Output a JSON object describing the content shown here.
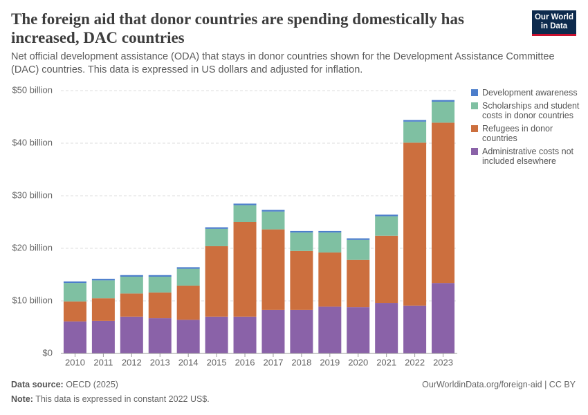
{
  "chart_data": {
    "type": "stacked_bar",
    "title": "The foreign aid that donor countries are spending domestically has increased, DAC countries",
    "subtitle": "Net official development assistance (ODA) that stays in donor countries shown for the Development Assistance Committee (DAC) countries. This data is expressed in US dollars and adjusted for inflation.",
    "categories": [
      "2010",
      "2011",
      "2012",
      "2013",
      "2014",
      "2015",
      "2016",
      "2017",
      "2018",
      "2019",
      "2020",
      "2021",
      "2022",
      "2023"
    ],
    "series": [
      {
        "name": "Administrative costs not included elsewhere",
        "color": "#8a62a8",
        "values": [
          6.1,
          6.2,
          7.0,
          6.7,
          6.4,
          7.0,
          7.0,
          8.3,
          8.3,
          8.9,
          8.8,
          9.6,
          9.1,
          13.4
        ]
      },
      {
        "name": "Refugees in donor countries",
        "color": "#cc6f3e",
        "values": [
          3.8,
          4.3,
          4.4,
          4.9,
          6.5,
          13.4,
          18.0,
          15.3,
          11.2,
          10.3,
          9.0,
          12.8,
          31.0,
          30.5
        ]
      },
      {
        "name": "Scholarships and student costs in donor countries",
        "color": "#7fc0a2",
        "values": [
          3.5,
          3.4,
          3.2,
          3.0,
          3.2,
          3.3,
          3.2,
          3.4,
          3.5,
          3.8,
          3.8,
          3.7,
          4.0,
          4.0
        ]
      },
      {
        "name": "Development awareness",
        "color": "#4c7ecb",
        "values": [
          0.3,
          0.3,
          0.3,
          0.3,
          0.3,
          0.3,
          0.3,
          0.3,
          0.3,
          0.3,
          0.3,
          0.3,
          0.3,
          0.3
        ]
      }
    ],
    "ylim": [
      0,
      50
    ],
    "yticks": [
      {
        "value": 0,
        "label": "$0"
      },
      {
        "value": 10,
        "label": "$10 billion"
      },
      {
        "value": 20,
        "label": "$20 billion"
      },
      {
        "value": 30,
        "label": "$30 billion"
      },
      {
        "value": 40,
        "label": "$40 billion"
      },
      {
        "value": 50,
        "label": "$50 billion"
      }
    ],
    "grid": true
  },
  "logo": [
    "Our World",
    "in Data"
  ],
  "footer": {
    "source_label": "Data source:",
    "source": "OECD (2025)",
    "url": "OurWorldinData.org/foreign-aid | CC BY",
    "note_label": "Note:",
    "note": "This data is expressed in constant 2022 US$."
  }
}
